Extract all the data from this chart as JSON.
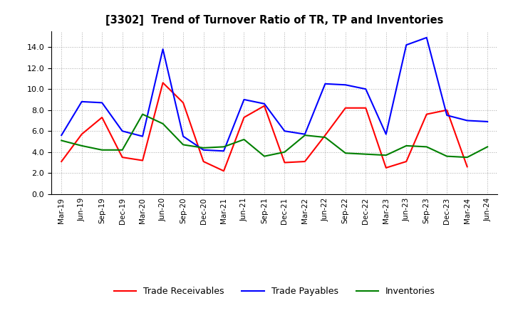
{
  "title": "[3302]  Trend of Turnover Ratio of TR, TP and Inventories",
  "xlabels": [
    "Mar-19",
    "Jun-19",
    "Sep-19",
    "Dec-19",
    "Mar-20",
    "Jun-20",
    "Sep-20",
    "Dec-20",
    "Mar-21",
    "Jun-21",
    "Sep-21",
    "Dec-21",
    "Mar-22",
    "Jun-22",
    "Sep-22",
    "Dec-22",
    "Mar-23",
    "Jun-23",
    "Sep-23",
    "Dec-23",
    "Mar-24",
    "Jun-24"
  ],
  "trade_receivables": [
    3.1,
    5.7,
    7.3,
    3.5,
    3.2,
    10.6,
    8.7,
    3.1,
    2.2,
    7.3,
    8.4,
    3.0,
    3.1,
    5.6,
    8.2,
    8.2,
    2.5,
    3.1,
    7.6,
    8.0,
    2.6,
    null
  ],
  "trade_payables": [
    5.6,
    8.8,
    8.7,
    6.0,
    5.5,
    13.8,
    5.5,
    4.2,
    4.1,
    9.0,
    8.6,
    6.0,
    5.7,
    10.5,
    10.4,
    10.0,
    5.7,
    14.2,
    14.9,
    7.5,
    7.0,
    6.9
  ],
  "inventories": [
    5.1,
    4.6,
    4.2,
    4.2,
    7.6,
    6.7,
    4.7,
    4.4,
    4.5,
    5.2,
    3.6,
    4.0,
    5.6,
    5.4,
    3.9,
    3.8,
    3.7,
    4.6,
    4.5,
    3.6,
    3.5,
    4.5
  ],
  "ylim": [
    0,
    15.5
  ],
  "yticks": [
    0.0,
    2.0,
    4.0,
    6.0,
    8.0,
    10.0,
    12.0,
    14.0
  ],
  "colors": {
    "trade_receivables": "#ff0000",
    "trade_payables": "#0000ff",
    "inventories": "#008000"
  },
  "legend_labels": [
    "Trade Receivables",
    "Trade Payables",
    "Inventories"
  ],
  "background_color": "#ffffff",
  "grid_color": "#aaaaaa"
}
